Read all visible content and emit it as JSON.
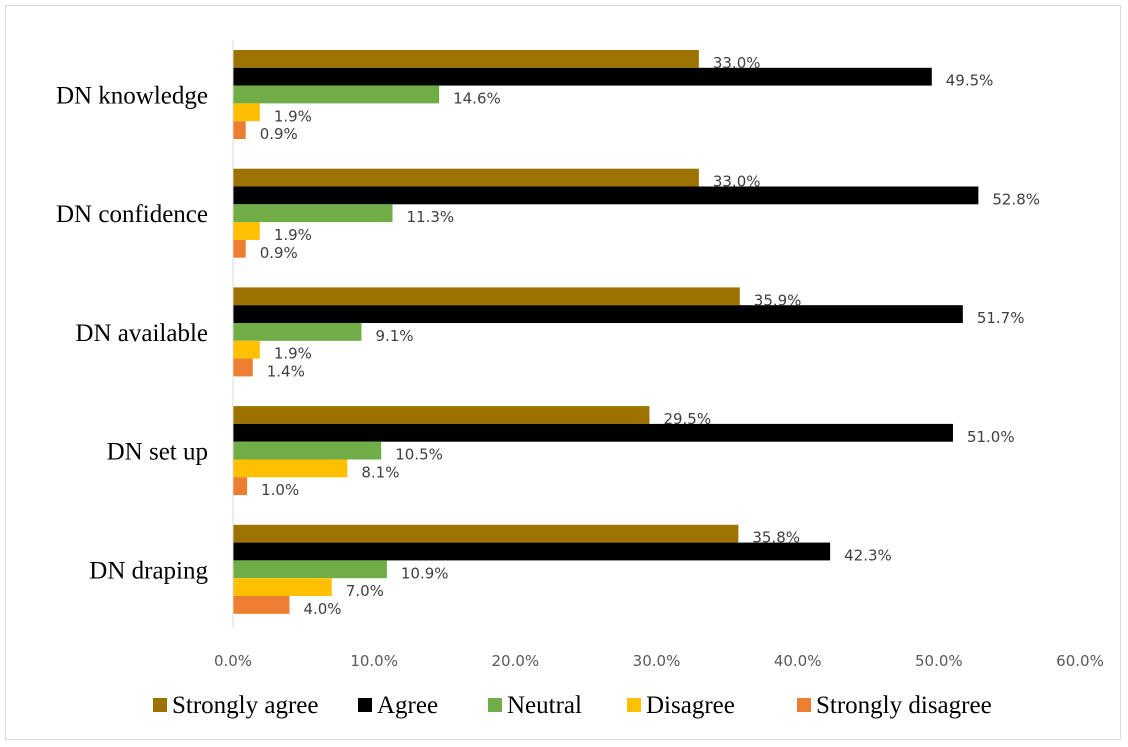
{
  "chart_data": {
    "type": "bar",
    "orientation": "horizontal",
    "categories": [
      "DN knowledge",
      "DN confidence",
      "DN available",
      "DN set up",
      "DN draping"
    ],
    "series": [
      {
        "name": "Strongly agree",
        "color": "#9c7300",
        "values": [
          33.0,
          33.0,
          35.9,
          29.5,
          35.8
        ],
        "labels": [
          "33.0%",
          "33.0%",
          "35.9%",
          "29.5%",
          "35.8%"
        ]
      },
      {
        "name": "Agree",
        "color": "#000000",
        "values": [
          49.5,
          52.8,
          51.7,
          51.0,
          42.3
        ],
        "labels": [
          "49.5%",
          "52.8%",
          "51.7%",
          "51.0%",
          "42.3%"
        ]
      },
      {
        "name": "Neutral",
        "color": "#70ad47",
        "values": [
          14.6,
          11.3,
          9.1,
          10.5,
          10.9
        ],
        "labels": [
          "14.6%",
          "11.3%",
          "9.1%",
          "10.5%",
          "10.9%"
        ]
      },
      {
        "name": "Disagree",
        "color": "#ffc000",
        "values": [
          1.9,
          1.9,
          1.9,
          8.1,
          7.0
        ],
        "labels": [
          "1.9%",
          "1.9%",
          "1.9%",
          "8.1%",
          "7.0%"
        ]
      },
      {
        "name": "Strongly disagree",
        "color": "#ed7d31",
        "values": [
          0.9,
          0.9,
          1.4,
          1.0,
          4.0
        ],
        "labels": [
          "0.9%",
          "0.9%",
          "1.4%",
          "1.0%",
          "4.0%"
        ]
      }
    ],
    "xlim": [
      0,
      60
    ],
    "xticks": [
      0,
      10,
      20,
      30,
      40,
      50,
      60
    ],
    "xtick_labels": [
      "0.0%",
      "10.0%",
      "20.0%",
      "30.0%",
      "40.0%",
      "50.0%",
      "60.0%"
    ],
    "grid": false,
    "legend_position": "bottom",
    "title": "",
    "xlabel": "",
    "ylabel": ""
  }
}
